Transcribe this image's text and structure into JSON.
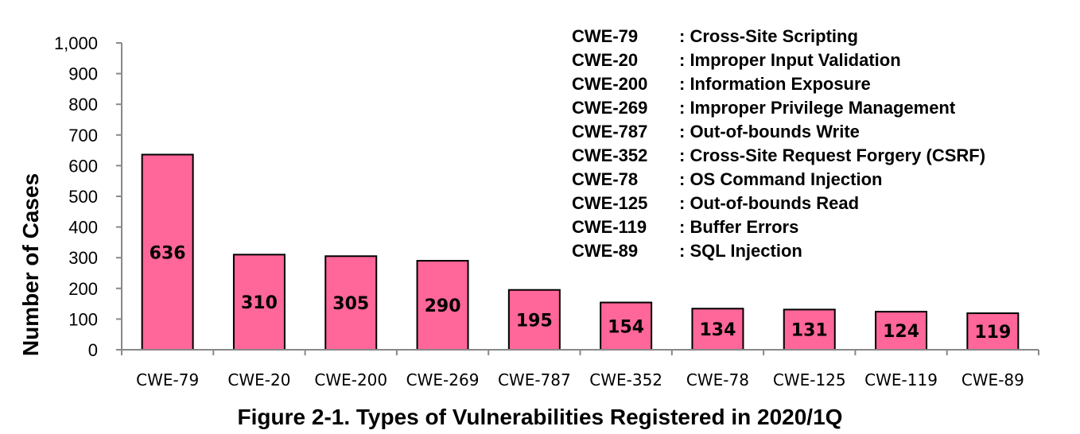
{
  "chart_data": {
    "type": "bar",
    "title": "Figure 2-1. Types of Vulnerabilities Registered in 2020/1Q",
    "xlabel": "",
    "ylabel": "Number of Cases",
    "ylim": [
      0,
      1000
    ],
    "yticks": [
      "0",
      "100",
      "200",
      "300",
      "400",
      "500",
      "600",
      "700",
      "800",
      "900",
      "1,000"
    ],
    "categories": [
      "CWE-79",
      "CWE-20",
      "CWE-200",
      "CWE-269",
      "CWE-787",
      "CWE-352",
      "CWE-78",
      "CWE-125",
      "CWE-119",
      "CWE-89"
    ],
    "values": [
      636,
      310,
      305,
      290,
      195,
      154,
      134,
      131,
      124,
      119
    ],
    "bar_color": "#FF6699",
    "grid": false,
    "legend_placement": "top-right",
    "legend": [
      {
        "code": "CWE-79",
        "desc": ": Cross-Site Scripting"
      },
      {
        "code": "CWE-20",
        "desc": ": Improper Input Validation"
      },
      {
        "code": "CWE-200",
        "desc": ": Information Exposure"
      },
      {
        "code": "CWE-269",
        "desc": ": Improper Privilege Management"
      },
      {
        "code": "CWE-787",
        "desc": ": Out-of-bounds Write"
      },
      {
        "code": "CWE-352",
        "desc": ": Cross-Site Request Forgery (CSRF)"
      },
      {
        "code": "CWE-78",
        "desc": ": OS Command Injection"
      },
      {
        "code": "CWE-125",
        "desc": ": Out-of-bounds Read"
      },
      {
        "code": "CWE-119",
        "desc": ": Buffer Errors"
      },
      {
        "code": "CWE-89",
        "desc": ": SQL Injection"
      }
    ]
  }
}
